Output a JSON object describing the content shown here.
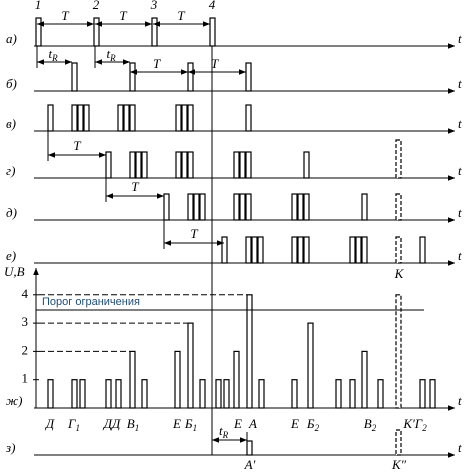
{
  "pulse_numbers": [
    "1",
    "2",
    "3",
    "4"
  ],
  "rows": [
    {
      "label": "а)",
      "axis": "t",
      "intervals": [
        "T",
        "T",
        "T"
      ]
    },
    {
      "label": "б)",
      "axis": "t",
      "intervals": [
        {
          "main": "t",
          "sub": "R"
        },
        {
          "main": "t",
          "sub": "R"
        },
        "T",
        "T"
      ]
    },
    {
      "label": "в)",
      "axis": "t"
    },
    {
      "label": "г)",
      "axis": "t",
      "intervals": [
        "T"
      ]
    },
    {
      "label": "д)",
      "axis": "t",
      "intervals": [
        "T"
      ]
    },
    {
      "label": "е)",
      "axis": "t",
      "intervals": [
        "T"
      ],
      "marker": "К"
    },
    {
      "label": "ж)",
      "axis": "t",
      "y_axis": "U,B",
      "y_ticks": [
        1,
        2,
        3,
        4
      ],
      "threshold": "Порог ограничения",
      "pulse_labels": [
        "Д",
        {
          "main": "Г",
          "sub": "1"
        },
        "ДД",
        {
          "main": "В",
          "sub": "1"
        },
        "Е",
        {
          "main": "Б",
          "sub": "1"
        },
        "Е",
        "А",
        "Е",
        {
          "main": "Б",
          "sub": "2"
        },
        {
          "main": "В",
          "sub": "2"
        },
        {
          "main": "К′Г",
          "sub": "2"
        }
      ]
    },
    {
      "label": "з)",
      "axis": "t",
      "intervals": [
        {
          "main": "t",
          "sub": "R"
        }
      ],
      "pulse_labels": [
        "А′",
        "К″"
      ]
    }
  ]
}
